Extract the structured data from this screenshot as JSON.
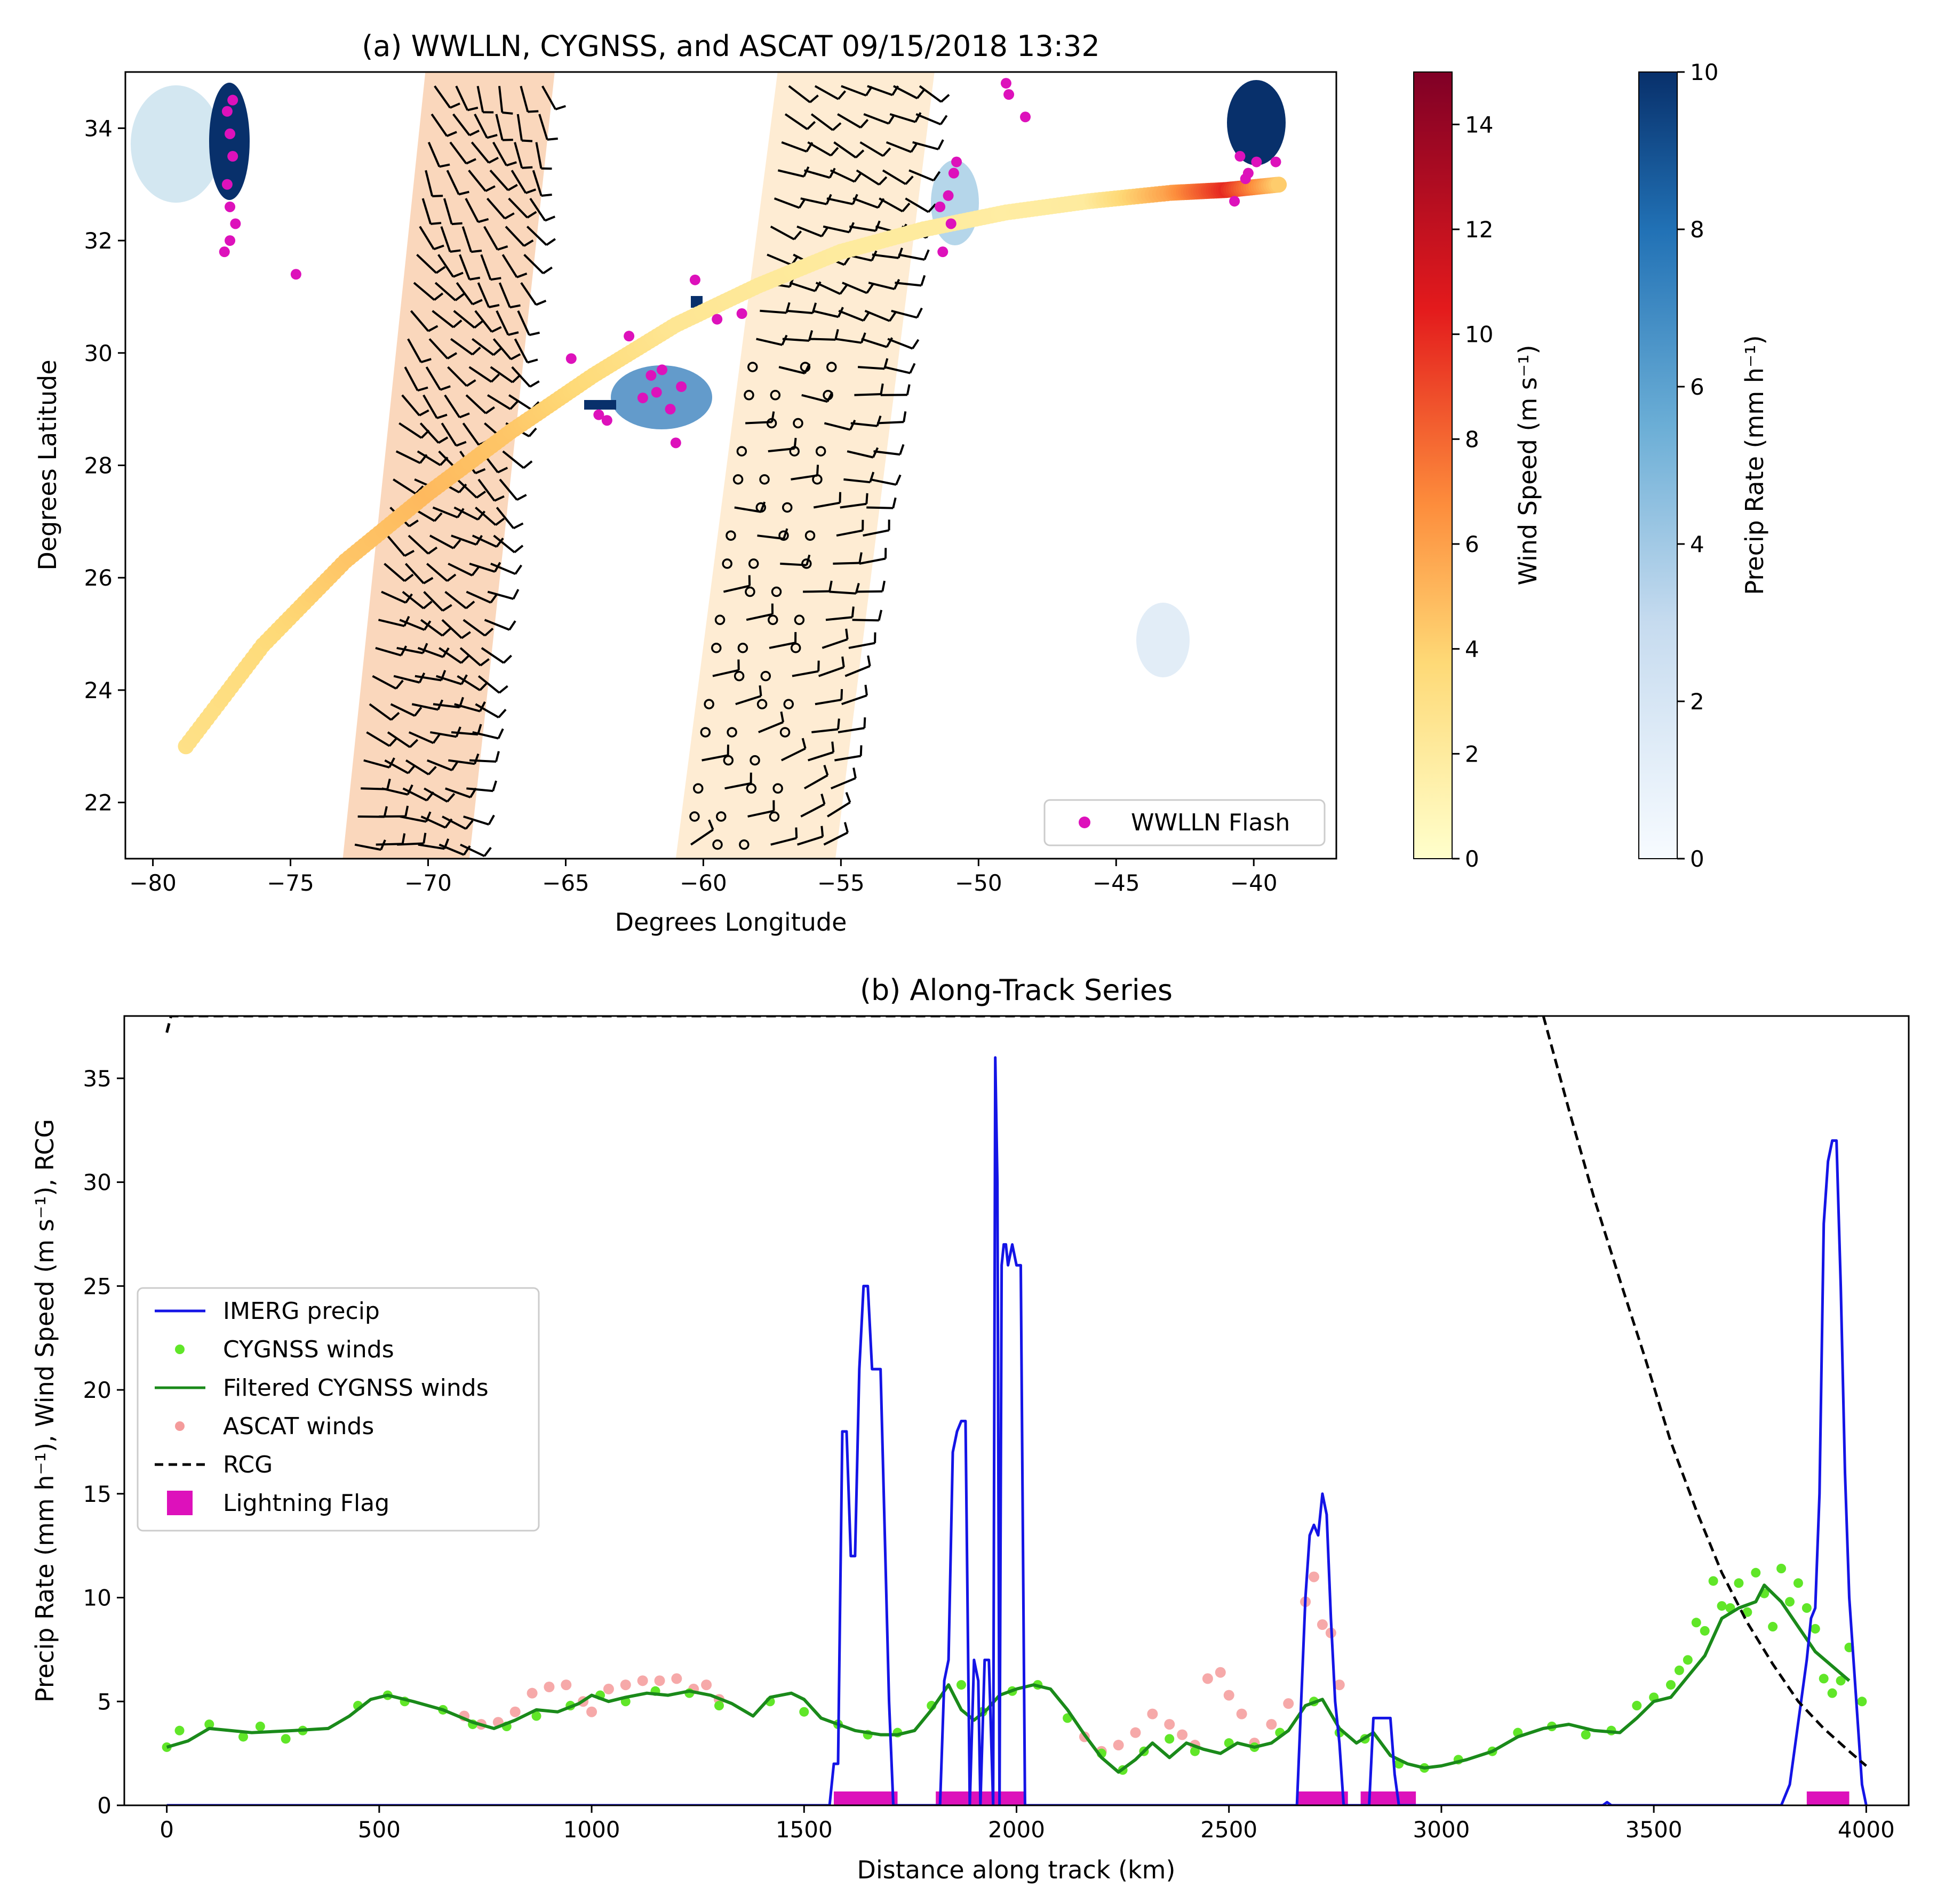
{
  "chart_data": [
    {
      "type": "map",
      "title": "(a) WWLLN, CYGNSS, and ASCAT 09/15/2018 13:32",
      "xlabel": "Degrees Longitude",
      "ylabel": "Degrees Latitude",
      "xlim": [
        -81,
        -37
      ],
      "ylim": [
        21,
        35
      ],
      "xticks": [
        -80,
        -75,
        -70,
        -65,
        -60,
        -55,
        -50,
        -45,
        -40
      ],
      "xtick_labels": [
        "−80",
        "−75",
        "−70",
        "−65",
        "−60",
        "−55",
        "−50",
        "−45",
        "−40"
      ],
      "yticks": [
        22,
        24,
        26,
        28,
        30,
        32,
        34
      ],
      "ytick_labels": [
        "22",
        "24",
        "26",
        "28",
        "30",
        "32",
        "34"
      ],
      "legend": [
        {
          "label": "WWLLN Flash",
          "color": "#dd11bb",
          "position": "lower-right"
        }
      ],
      "cygnss_track": {
        "lon": [
          -78.8,
          -76,
          -73,
          -70,
          -67,
          -64,
          -61,
          -58,
          -55,
          -52,
          -49,
          -46,
          -43,
          -41,
          -39
        ],
        "lat": [
          23.0,
          24.8,
          26.3,
          27.5,
          28.6,
          29.6,
          30.5,
          31.2,
          31.8,
          32.2,
          32.5,
          32.7,
          32.85,
          32.9,
          33.0
        ],
        "wind": [
          3.0,
          3.5,
          4.5,
          5.0,
          4.5,
          3.5,
          2.5,
          2.2,
          2.0,
          2.0,
          1.8,
          2.0,
          6.0,
          10.0,
          4.0
        ]
      },
      "ascat_swaths": [
        {
          "corners_lon": [
            -73.1,
            -68.5,
            -65.4,
            -70.1
          ],
          "corners_lat": [
            21,
            21,
            35,
            35
          ]
        },
        {
          "corners_lon": [
            -61.0,
            -55.2,
            -51.6,
            -57.3
          ],
          "corners_lat": [
            21,
            21,
            35,
            35
          ]
        }
      ],
      "wwlln_flashes": {
        "lon": [
          -77.3,
          -77.2,
          -77.1,
          -77.3,
          -77.2,
          -77.0,
          -77.2,
          -77.4,
          -77.1,
          -74.8,
          -64.8,
          -63.8,
          -63.5,
          -62.7,
          -62.2,
          -61.9,
          -61.7,
          -61.5,
          -61.2,
          -61.0,
          -60.8,
          -60.3,
          -59.5,
          -58.6,
          -51.3,
          -51.0,
          -50.8,
          -51.1,
          -50.9,
          -51.4,
          -49.0,
          -48.9,
          -48.3,
          -40.5,
          -40.2,
          -39.9,
          -40.3,
          -39.2,
          -40.7
        ],
        "lat": [
          34.3,
          33.9,
          33.5,
          33.0,
          32.6,
          32.3,
          32.0,
          31.8,
          34.5,
          31.4,
          29.9,
          28.9,
          28.8,
          30.3,
          29.2,
          29.6,
          29.3,
          29.7,
          29.0,
          28.4,
          29.4,
          31.3,
          30.6,
          30.7,
          31.8,
          32.3,
          33.4,
          32.8,
          33.2,
          32.6,
          34.8,
          34.6,
          34.2,
          33.5,
          33.2,
          33.4,
          33.1,
          33.4,
          32.7
        ]
      },
      "colorbars": [
        {
          "label": "Wind Speed (m s⁻¹)",
          "range": [
            0,
            15
          ],
          "ticks": [
            0,
            2,
            4,
            6,
            8,
            10,
            12,
            14
          ],
          "colormap": "YlOrRd"
        },
        {
          "label": "Precip Rate (mm h⁻¹)",
          "range": [
            0,
            10
          ],
          "ticks": [
            0,
            2,
            4,
            6,
            8,
            10
          ],
          "colormap": "Blues"
        }
      ]
    },
    {
      "type": "line",
      "title": "(b) Along-Track Series",
      "xlabel": "Distance along track (km)",
      "ylabel": "Precip Rate (mm h⁻¹), Wind Speed (m s⁻¹), RCG",
      "xlim": [
        -100,
        4100
      ],
      "ylim": [
        0,
        38
      ],
      "xticks": [
        0,
        500,
        1000,
        1500,
        2000,
        2500,
        3000,
        3500,
        4000
      ],
      "yticks": [
        0,
        5,
        10,
        15,
        20,
        25,
        30,
        35
      ],
      "legend_position": "center-left",
      "series": [
        {
          "name": "IMERG precip",
          "style": "line",
          "color": "#1414e6",
          "x": [
            0,
            1560,
            1570,
            1580,
            1590,
            1600,
            1610,
            1620,
            1630,
            1640,
            1650,
            1660,
            1670,
            1680,
            1700,
            1710,
            1820,
            1830,
            1840,
            1850,
            1860,
            1870,
            1880,
            1890,
            1900,
            1910,
            1915,
            1925,
            1935,
            1945,
            1950,
            1955,
            1960,
            1965,
            1970,
            1975,
            1980,
            1990,
            2000,
            2010,
            2020,
            2660,
            2670,
            2680,
            2690,
            2700,
            2710,
            2720,
            2730,
            2740,
            2750,
            2760,
            2770,
            2780,
            2830,
            2840,
            2870,
            2880,
            2890,
            2900,
            3380,
            3390,
            3400,
            3800,
            3820,
            3840,
            3860,
            3870,
            3880,
            3890,
            3900,
            3910,
            3920,
            3930,
            3940,
            3950,
            3960,
            3970,
            3980,
            3990,
            4000
          ],
          "y": [
            0,
            0,
            2,
            2,
            18,
            18,
            12,
            12,
            21,
            25,
            25,
            21,
            21,
            21,
            5,
            0,
            0,
            6,
            7,
            17,
            18,
            18.5,
            18.5,
            0,
            7,
            6,
            0,
            7,
            7,
            0,
            36,
            30,
            0,
            26,
            27,
            27,
            26,
            27,
            26,
            26,
            0,
            0,
            5,
            10,
            13,
            13.5,
            13,
            15,
            14,
            9,
            5,
            3,
            0,
            0,
            0,
            4.2,
            4.2,
            4.2,
            1.5,
            0,
            0,
            0.15,
            0,
            0,
            1,
            4,
            7,
            9,
            9.5,
            15,
            28,
            31,
            32,
            32,
            25,
            16,
            10,
            7,
            4,
            1,
            0
          ]
        },
        {
          "name": "CYGNSS winds",
          "style": "scatter",
          "color": "#60e628",
          "x": [
            0,
            30,
            100,
            180,
            220,
            280,
            320,
            450,
            520,
            560,
            650,
            720,
            800,
            870,
            950,
            1020,
            1080,
            1150,
            1230,
            1300,
            1420,
            1500,
            1580,
            1650,
            1720,
            1800,
            1870,
            1920,
            1990,
            2050,
            2120,
            2200,
            2250,
            2300,
            2360,
            2420,
            2500,
            2560,
            2620,
            2700,
            2760,
            2820,
            2900,
            2960,
            3040,
            3120,
            3180,
            3260,
            3340,
            3400,
            3460,
            3500,
            3540,
            3560,
            3580,
            3600,
            3620,
            3640,
            3660,
            3680,
            3700,
            3720,
            3740,
            3760,
            3780,
            3800,
            3820,
            3840,
            3860,
            3880,
            3900,
            3920,
            3940,
            3960,
            3990
          ],
          "y": [
            2.8,
            3.6,
            3.9,
            3.3,
            3.8,
            3.2,
            3.6,
            4.8,
            5.3,
            5.0,
            4.6,
            3.9,
            3.8,
            4.3,
            4.8,
            5.3,
            5.0,
            5.5,
            5.4,
            4.8,
            5.0,
            4.5,
            3.9,
            3.4,
            3.5,
            4.8,
            5.8,
            4.5,
            5.5,
            5.8,
            4.2,
            2.5,
            1.7,
            2.6,
            3.2,
            2.6,
            3.0,
            2.8,
            3.5,
            5.0,
            3.5,
            3.2,
            2.0,
            1.8,
            2.2,
            2.6,
            3.5,
            3.8,
            3.4,
            3.6,
            4.8,
            5.2,
            5.8,
            6.5,
            7.0,
            8.8,
            8.4,
            10.8,
            9.6,
            9.5,
            10.7,
            9.3,
            11.2,
            10.2,
            8.6,
            11.4,
            9.8,
            10.7,
            9.5,
            8.5,
            6.1,
            5.4,
            6.0,
            7.6,
            5.0
          ]
        },
        {
          "name": "Filtered CYGNSS winds",
          "style": "line",
          "color": "#1a8a1a",
          "x": [
            0,
            50,
            100,
            200,
            300,
            380,
            430,
            480,
            520,
            580,
            650,
            720,
            770,
            820,
            870,
            920,
            970,
            1000,
            1040,
            1080,
            1130,
            1180,
            1230,
            1280,
            1330,
            1380,
            1420,
            1470,
            1500,
            1540,
            1580,
            1620,
            1680,
            1720,
            1760,
            1800,
            1840,
            1870,
            1900,
            1930,
            1960,
            2000,
            2040,
            2080,
            2120,
            2160,
            2200,
            2240,
            2280,
            2320,
            2360,
            2400,
            2440,
            2480,
            2520,
            2560,
            2600,
            2640,
            2680,
            2720,
            2760,
            2800,
            2840,
            2880,
            2920,
            2960,
            3000,
            3060,
            3120,
            3180,
            3240,
            3300,
            3360,
            3420,
            3460,
            3500,
            3540,
            3580,
            3620,
            3660,
            3700,
            3740,
            3760,
            3800,
            3840,
            3880,
            3920,
            3960
          ],
          "y": [
            2.8,
            3.1,
            3.7,
            3.5,
            3.6,
            3.7,
            4.3,
            5.1,
            5.3,
            5.0,
            4.6,
            4.0,
            3.7,
            4.1,
            4.6,
            4.5,
            4.9,
            5.3,
            5.0,
            5.2,
            5.4,
            5.3,
            5.5,
            5.3,
            4.9,
            4.3,
            5.2,
            5.4,
            5.1,
            4.2,
            3.9,
            3.6,
            3.4,
            3.4,
            3.6,
            4.6,
            5.8,
            4.6,
            4.1,
            4.6,
            5.3,
            5.6,
            5.8,
            5.6,
            4.6,
            3.4,
            2.3,
            1.6,
            2.2,
            3.0,
            2.3,
            3.0,
            2.7,
            2.5,
            3.0,
            2.8,
            3.0,
            3.6,
            4.8,
            5.1,
            3.7,
            3.0,
            3.5,
            2.4,
            2.0,
            1.8,
            1.9,
            2.2,
            2.6,
            3.3,
            3.7,
            3.9,
            3.6,
            3.5,
            4.2,
            5.0,
            5.2,
            6.2,
            7.2,
            9.0,
            9.5,
            9.8,
            10.6,
            9.8,
            8.6,
            7.4,
            6.7,
            6.0
          ]
        },
        {
          "name": "ASCAT winds",
          "style": "scatter",
          "color": "#f07070",
          "x": [
            700,
            740,
            780,
            820,
            860,
            900,
            940,
            980,
            1000,
            1040,
            1080,
            1120,
            1160,
            1200,
            1240,
            1270,
            1300,
            2160,
            2200,
            2240,
            2280,
            2320,
            2360,
            2390,
            2420,
            2450,
            2480,
            2500,
            2530,
            2560,
            2600,
            2640,
            2680,
            2700,
            2720,
            2740,
            2760
          ],
          "y": [
            4.3,
            3.9,
            4.0,
            4.5,
            5.4,
            5.7,
            5.8,
            5.0,
            4.5,
            5.6,
            5.8,
            6.0,
            6.0,
            6.1,
            5.6,
            5.8,
            5.1,
            3.3,
            2.6,
            2.9,
            3.5,
            4.4,
            3.9,
            3.4,
            2.9,
            6.1,
            6.4,
            5.3,
            4.4,
            3.0,
            3.9,
            4.9,
            9.8,
            11.0,
            8.7,
            8.3,
            5.8
          ]
        },
        {
          "name": "RCG",
          "style": "dashed",
          "color": "#000000",
          "x": [
            0,
            10,
            3240,
            3300,
            3360,
            3420,
            3480,
            3540,
            3600,
            3660,
            3720,
            3780,
            3840,
            3900,
            3960,
            4000
          ],
          "y": [
            37.2,
            38,
            38,
            33.5,
            29.2,
            25.3,
            21.5,
            17.5,
            14.2,
            11.2,
            8.8,
            6.8,
            5.0,
            3.7,
            2.6,
            1.9
          ]
        },
        {
          "name": "Lightning Flag",
          "style": "bar",
          "color": "#dd11bb",
          "segments": [
            [
              1570,
              1720
            ],
            [
              1810,
              2020
            ],
            [
              2660,
              2780
            ],
            [
              2810,
              2940
            ],
            [
              3860,
              3960
            ]
          ]
        }
      ]
    }
  ]
}
